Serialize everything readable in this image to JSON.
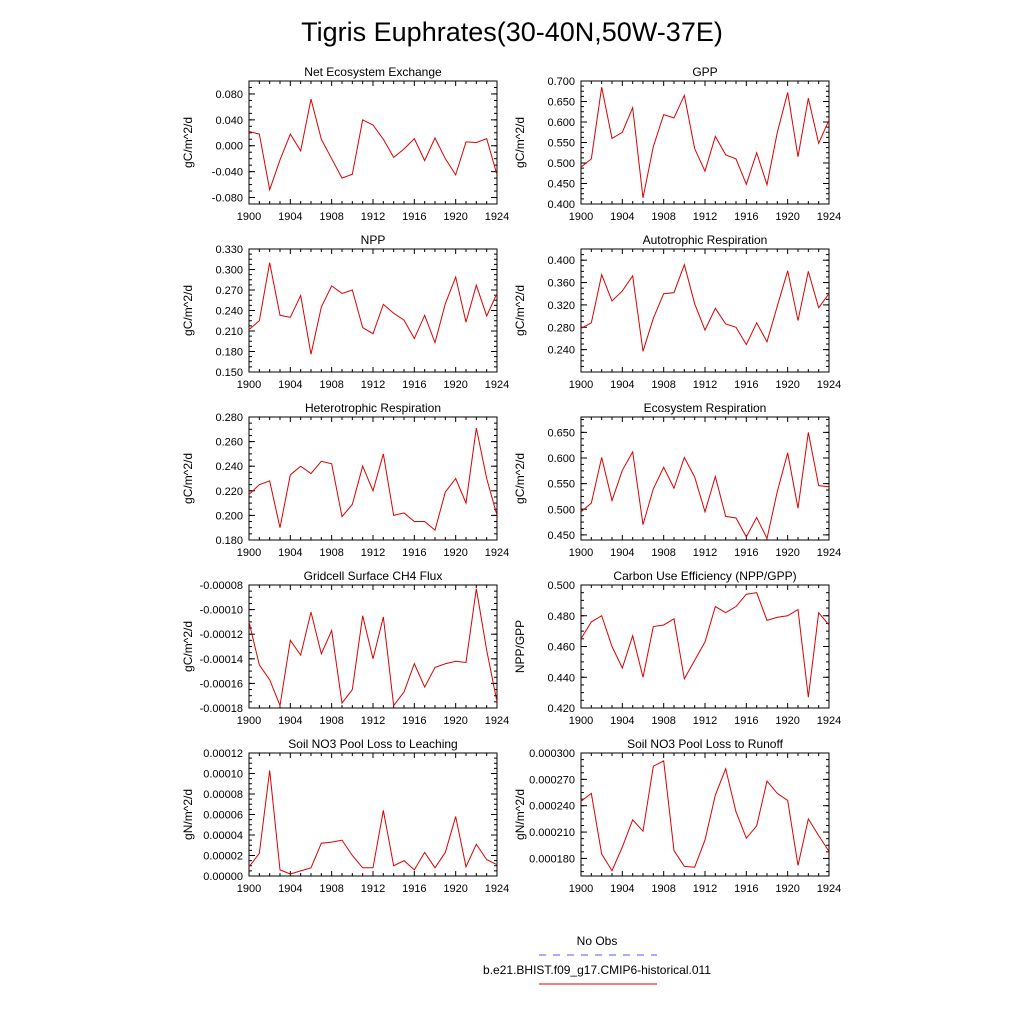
{
  "title": "Tigris Euphrates(30-40N,50W-37E)",
  "x_tick_labels": [
    "1900",
    "1904",
    "1908",
    "1912",
    "1916",
    "1920",
    "1924"
  ],
  "legend": {
    "obs_label": "No Obs",
    "obs_color": "#5555ff",
    "model_label": "b.e21.BHIST.f09_g17.CMIP6-historical.011",
    "model_color": "#dd0000"
  },
  "chart_data": [
    {
      "type": "line",
      "title": "Net Ecosystem Exchange",
      "ylabel": "gC/m^2/d",
      "xlim": [
        1900,
        1924
      ],
      "ylim": [
        -0.09,
        0.1
      ],
      "yticks": [
        -0.08,
        -0.04,
        0.0,
        0.04,
        0.08
      ],
      "ytick_labels": [
        "-0.080",
        "-0.040",
        "0.000",
        "0.040",
        "0.080"
      ],
      "x": [
        1900,
        1901,
        1902,
        1903,
        1904,
        1905,
        1906,
        1907,
        1908,
        1909,
        1910,
        1911,
        1912,
        1913,
        1914,
        1915,
        1916,
        1917,
        1918,
        1919,
        1920,
        1921,
        1922,
        1923,
        1924
      ],
      "series": [
        {
          "values": [
            0.022,
            0.018,
            -0.068,
            -0.022,
            0.018,
            -0.008,
            0.072,
            0.01,
            -0.02,
            -0.05,
            -0.044,
            0.04,
            0.032,
            0.01,
            -0.018,
            -0.005,
            0.011,
            -0.023,
            0.012,
            -0.02,
            -0.045,
            0.006,
            0.005,
            0.011,
            -0.045
          ]
        }
      ]
    },
    {
      "type": "line",
      "title": "GPP",
      "ylabel": "gC/m^2/d",
      "xlim": [
        1900,
        1924
      ],
      "ylim": [
        0.4,
        0.7
      ],
      "yticks": [
        0.4,
        0.45,
        0.5,
        0.55,
        0.6,
        0.65,
        0.7
      ],
      "ytick_labels": [
        "0.400",
        "0.450",
        "0.500",
        "0.550",
        "0.600",
        "0.650",
        "0.700"
      ],
      "x": [
        1900,
        1901,
        1902,
        1903,
        1904,
        1905,
        1906,
        1907,
        1908,
        1909,
        1910,
        1911,
        1912,
        1913,
        1914,
        1915,
        1916,
        1917,
        1918,
        1919,
        1920,
        1921,
        1922,
        1923,
        1924
      ],
      "series": [
        {
          "values": [
            0.49,
            0.51,
            0.685,
            0.56,
            0.575,
            0.635,
            0.415,
            0.54,
            0.618,
            0.61,
            0.665,
            0.535,
            0.48,
            0.565,
            0.52,
            0.51,
            0.448,
            0.525,
            0.447,
            0.575,
            0.672,
            0.515,
            0.658,
            0.548,
            0.605
          ]
        }
      ]
    },
    {
      "type": "line",
      "title": "NPP",
      "ylabel": "gC/m^2/d",
      "xlim": [
        1900,
        1924
      ],
      "ylim": [
        0.15,
        0.33
      ],
      "yticks": [
        0.15,
        0.18,
        0.21,
        0.24,
        0.27,
        0.3,
        0.33
      ],
      "ytick_labels": [
        "0.150",
        "0.180",
        "0.210",
        "0.240",
        "0.270",
        "0.300",
        "0.330"
      ],
      "x": [
        1900,
        1901,
        1902,
        1903,
        1904,
        1905,
        1906,
        1907,
        1908,
        1909,
        1910,
        1911,
        1912,
        1913,
        1914,
        1915,
        1916,
        1917,
        1918,
        1919,
        1920,
        1921,
        1922,
        1923,
        1924
      ],
      "series": [
        {
          "values": [
            0.212,
            0.225,
            0.31,
            0.233,
            0.23,
            0.262,
            0.176,
            0.245,
            0.276,
            0.265,
            0.27,
            0.215,
            0.206,
            0.249,
            0.236,
            0.226,
            0.199,
            0.233,
            0.193,
            0.25,
            0.289,
            0.223,
            0.277,
            0.232,
            0.265
          ]
        }
      ]
    },
    {
      "type": "line",
      "title": "Autotrophic Respiration",
      "ylabel": "gC/m^2/d",
      "xlim": [
        1900,
        1924
      ],
      "ylim": [
        0.2,
        0.42
      ],
      "yticks": [
        0.24,
        0.28,
        0.32,
        0.36,
        0.4
      ],
      "ytick_labels": [
        "0.240",
        "0.280",
        "0.320",
        "0.360",
        "0.400"
      ],
      "x": [
        1900,
        1901,
        1902,
        1903,
        1904,
        1905,
        1906,
        1907,
        1908,
        1909,
        1910,
        1911,
        1912,
        1913,
        1914,
        1915,
        1916,
        1917,
        1918,
        1919,
        1920,
        1921,
        1922,
        1923,
        1924
      ],
      "series": [
        {
          "values": [
            0.278,
            0.288,
            0.374,
            0.327,
            0.345,
            0.372,
            0.237,
            0.296,
            0.34,
            0.342,
            0.392,
            0.322,
            0.275,
            0.314,
            0.286,
            0.28,
            0.249,
            0.288,
            0.254,
            0.318,
            0.381,
            0.292,
            0.38,
            0.315,
            0.34
          ]
        }
      ]
    },
    {
      "type": "line",
      "title": "Heterotrophic Respiration",
      "ylabel": "gC/m^2/d",
      "xlim": [
        1900,
        1924
      ],
      "ylim": [
        0.18,
        0.28
      ],
      "yticks": [
        0.18,
        0.2,
        0.22,
        0.24,
        0.26,
        0.28
      ],
      "ytick_labels": [
        "0.180",
        "0.200",
        "0.220",
        "0.240",
        "0.260",
        "0.280"
      ],
      "x": [
        1900,
        1901,
        1902,
        1903,
        1904,
        1905,
        1906,
        1907,
        1908,
        1909,
        1910,
        1911,
        1912,
        1913,
        1914,
        1915,
        1916,
        1917,
        1918,
        1919,
        1920,
        1921,
        1922,
        1923,
        1924
      ],
      "series": [
        {
          "values": [
            0.217,
            0.225,
            0.228,
            0.19,
            0.233,
            0.24,
            0.234,
            0.244,
            0.242,
            0.199,
            0.209,
            0.24,
            0.22,
            0.25,
            0.2,
            0.202,
            0.195,
            0.195,
            0.188,
            0.219,
            0.23,
            0.21,
            0.271,
            0.23,
            0.2
          ]
        }
      ]
    },
    {
      "type": "line",
      "title": "Ecosystem Respiration",
      "ylabel": "gC/m^2/d",
      "xlim": [
        1900,
        1924
      ],
      "ylim": [
        0.44,
        0.68
      ],
      "yticks": [
        0.45,
        0.5,
        0.55,
        0.6,
        0.65
      ],
      "ytick_labels": [
        "0.450",
        "0.500",
        "0.550",
        "0.600",
        "0.650"
      ],
      "x": [
        1900,
        1901,
        1902,
        1903,
        1904,
        1905,
        1906,
        1907,
        1908,
        1909,
        1910,
        1911,
        1912,
        1913,
        1914,
        1915,
        1916,
        1917,
        1918,
        1919,
        1920,
        1921,
        1922,
        1923,
        1924
      ],
      "series": [
        {
          "values": [
            0.495,
            0.512,
            0.601,
            0.517,
            0.576,
            0.612,
            0.47,
            0.54,
            0.582,
            0.541,
            0.601,
            0.563,
            0.495,
            0.564,
            0.486,
            0.483,
            0.446,
            0.484,
            0.443,
            0.535,
            0.61,
            0.502,
            0.65,
            0.546,
            0.544
          ]
        }
      ]
    },
    {
      "type": "line",
      "title": "Gridcell Surface CH4 Flux",
      "ylabel": "gC/m^2/d",
      "xlim": [
        1900,
        1924
      ],
      "ylim": [
        -0.00018,
        -8e-05
      ],
      "yticks": [
        -0.00018,
        -0.00016,
        -0.00014,
        -0.00012,
        -0.0001,
        -8e-05
      ],
      "ytick_labels": [
        "-0.00018",
        "-0.00016",
        "-0.00014",
        "-0.00012",
        "-0.00010",
        "-0.00008"
      ],
      "x": [
        1900,
        1901,
        1902,
        1903,
        1904,
        1905,
        1906,
        1907,
        1908,
        1909,
        1910,
        1911,
        1912,
        1913,
        1914,
        1915,
        1916,
        1917,
        1918,
        1919,
        1920,
        1921,
        1922,
        1923,
        1924
      ],
      "series": [
        {
          "values": [
            -0.00011,
            -0.000145,
            -0.000157,
            -0.000178,
            -0.000125,
            -0.000137,
            -0.000102,
            -0.000136,
            -0.000117,
            -0.000176,
            -0.000165,
            -0.000105,
            -0.00014,
            -0.000106,
            -0.000178,
            -0.000167,
            -0.000144,
            -0.000163,
            -0.000147,
            -0.000144,
            -0.000142,
            -0.000143,
            -8.3e-05,
            -0.000133,
            -0.000175
          ]
        }
      ]
    },
    {
      "type": "line",
      "title": "Carbon Use Efficiency (NPP/GPP)",
      "ylabel": "NPP/GPP",
      "xlim": [
        1900,
        1924
      ],
      "ylim": [
        0.42,
        0.5
      ],
      "yticks": [
        0.42,
        0.44,
        0.46,
        0.48,
        0.5
      ],
      "ytick_labels": [
        "0.420",
        "0.440",
        "0.460",
        "0.480",
        "0.500"
      ],
      "x": [
        1900,
        1901,
        1902,
        1903,
        1904,
        1905,
        1906,
        1907,
        1908,
        1909,
        1910,
        1911,
        1912,
        1913,
        1914,
        1915,
        1916,
        1917,
        1918,
        1919,
        1920,
        1921,
        1922,
        1923,
        1924
      ],
      "series": [
        {
          "values": [
            0.465,
            0.476,
            0.48,
            0.46,
            0.446,
            0.467,
            0.44,
            0.473,
            0.474,
            0.478,
            0.439,
            0.451,
            0.463,
            0.486,
            0.482,
            0.486,
            0.494,
            0.495,
            0.477,
            0.479,
            0.48,
            0.484,
            0.427,
            0.482,
            0.474
          ]
        }
      ]
    },
    {
      "type": "line",
      "title": "Soil NO3 Pool Loss to Leaching",
      "ylabel": "gN/m^2/d",
      "xlim": [
        1900,
        1924
      ],
      "ylim": [
        0,
        0.00012
      ],
      "yticks": [
        0,
        2e-05,
        4e-05,
        6e-05,
        8e-05,
        0.0001,
        0.00012
      ],
      "ytick_labels": [
        "0.00000",
        "0.00002",
        "0.00004",
        "0.00006",
        "0.00008",
        "0.00010",
        "0.00012"
      ],
      "x": [
        1900,
        1901,
        1902,
        1903,
        1904,
        1905,
        1906,
        1907,
        1908,
        1909,
        1910,
        1911,
        1912,
        1913,
        1914,
        1915,
        1916,
        1917,
        1918,
        1919,
        1920,
        1921,
        1922,
        1923,
        1924
      ],
      "series": [
        {
          "values": [
            9e-06,
            2.2e-05,
            0.000103,
            6e-06,
            2e-06,
            5e-06,
            8e-06,
            3.2e-05,
            3.3e-05,
            3.5e-05,
            2e-05,
            8e-06,
            8e-06,
            6.4e-05,
            1e-05,
            1.5e-05,
            6e-06,
            2.3e-05,
            8e-06,
            2.3e-05,
            5.8e-05,
            9e-06,
            3.1e-05,
            1.6e-05,
            1.1e-05
          ]
        }
      ]
    },
    {
      "type": "line",
      "title": "Soil NO3 Pool Loss to Runoff",
      "ylabel": "gN/m^2/d",
      "xlim": [
        1900,
        1924
      ],
      "ylim": [
        0.00016,
        0.0003
      ],
      "yticks": [
        0.00018,
        0.00021,
        0.00024,
        0.00027,
        0.0003
      ],
      "ytick_labels": [
        "0.000180",
        "0.000210",
        "0.000240",
        "0.000270",
        "0.000300"
      ],
      "x": [
        1900,
        1901,
        1902,
        1903,
        1904,
        1905,
        1906,
        1907,
        1908,
        1909,
        1910,
        1911,
        1912,
        1913,
        1914,
        1915,
        1916,
        1917,
        1918,
        1919,
        1920,
        1921,
        1922,
        1923,
        1924
      ],
      "series": [
        {
          "values": [
            0.000245,
            0.000254,
            0.000185,
            0.000166,
            0.000193,
            0.000224,
            0.000211,
            0.000285,
            0.000291,
            0.000189,
            0.000171,
            0.00017,
            0.000201,
            0.000252,
            0.000282,
            0.000233,
            0.000203,
            0.000217,
            0.000268,
            0.000254,
            0.000246,
            0.000172,
            0.000225,
            0.000206,
            0.000188
          ]
        }
      ]
    }
  ]
}
